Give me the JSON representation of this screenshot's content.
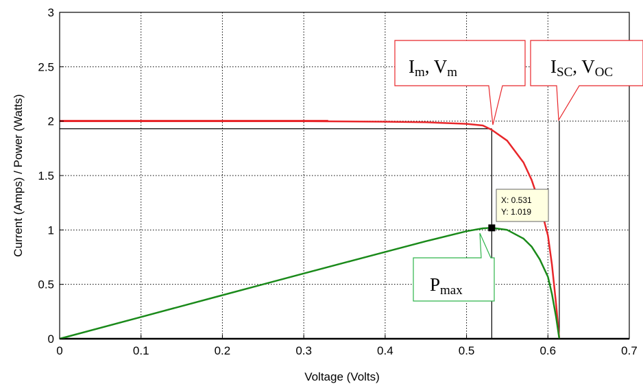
{
  "chart_data": {
    "type": "line",
    "title": "",
    "xlabel": "Voltage (Volts)",
    "ylabel": "Current (Amps) / Power (Watts)",
    "xlim": [
      0,
      0.7
    ],
    "ylim": [
      0,
      3
    ],
    "grid": true,
    "x_ticks": [
      0,
      0.1,
      0.2,
      0.3,
      0.4,
      0.5,
      0.6,
      0.7
    ],
    "x_tick_labels": [
      "0",
      "0.1",
      "0.2",
      "0.3",
      "0.4",
      "0.5",
      "0.6",
      "0.7"
    ],
    "y_ticks": [
      0,
      0.5,
      1,
      1.5,
      2,
      2.5,
      3
    ],
    "y_tick_labels": [
      "0",
      "0.5",
      "1",
      "1.5",
      "2",
      "2.5",
      "3"
    ],
    "colors": {
      "current": "#e8262a",
      "power": "#1a8a1a",
      "marker": "#000000",
      "datatip_bg": "#ffffe1"
    },
    "series": [
      {
        "key": "current",
        "x": [
          0,
          0.1,
          0.2,
          0.3,
          0.4,
          0.45,
          0.5,
          0.52,
          0.531,
          0.55,
          0.57,
          0.58,
          0.59,
          0.6,
          0.605,
          0.61,
          0.614
        ],
        "values": [
          2.0,
          2.0,
          2.0,
          2.0,
          1.995,
          1.99,
          1.975,
          1.96,
          1.92,
          1.82,
          1.62,
          1.46,
          1.24,
          0.95,
          0.68,
          0.32,
          0.0
        ]
      },
      {
        "key": "power",
        "x": [
          0,
          0.1,
          0.2,
          0.3,
          0.4,
          0.45,
          0.5,
          0.52,
          0.531,
          0.55,
          0.57,
          0.58,
          0.59,
          0.6,
          0.605,
          0.61,
          0.614
        ],
        "values": [
          0.0,
          0.2,
          0.4,
          0.6,
          0.798,
          0.896,
          0.988,
          1.015,
          1.019,
          1.0,
          0.92,
          0.847,
          0.73,
          0.57,
          0.41,
          0.2,
          0.0
        ]
      }
    ],
    "reference_lines": {
      "im_vm": {
        "x": 0.531,
        "y": 1.93
      },
      "isc_voc": {
        "x": 0.614,
        "y": 2.0
      }
    },
    "datatip": {
      "x": 0.531,
      "y": 1.019,
      "x_text": "X: 0.531",
      "y_text": "Y: 1.019"
    },
    "annotations": {
      "im_vm": {
        "i_main": "I",
        "i_sub": "m",
        "sep": ", ",
        "v_main": "V",
        "v_sub": "m"
      },
      "isc_voc": {
        "i_main": "I",
        "i_sub": "SC",
        "sep": ", ",
        "v_main": "V",
        "v_sub": "OC"
      },
      "pmax": {
        "main": "P",
        "sub": "max"
      }
    }
  }
}
